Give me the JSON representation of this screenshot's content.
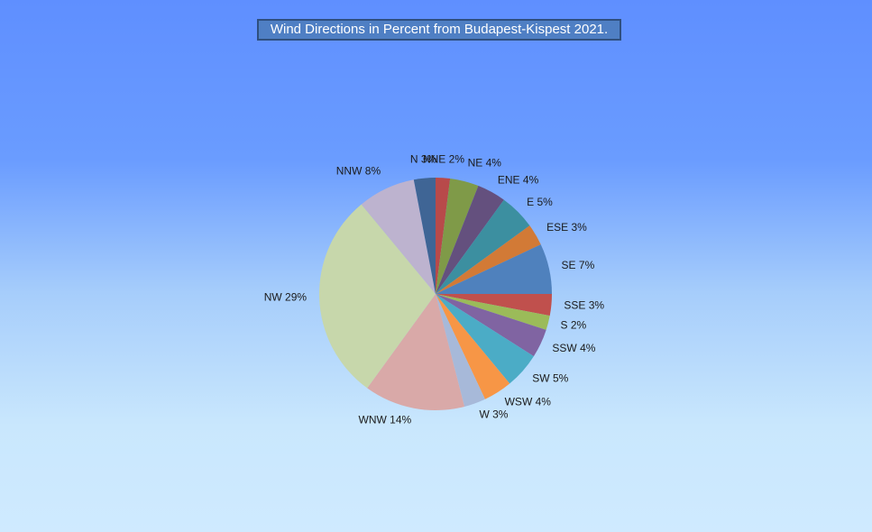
{
  "chart_data": {
    "type": "pie",
    "title": "Wind Directions in Percent from Budapest-Kispest 2021.",
    "categories": [
      "NNE",
      "NE",
      "ENE",
      "E",
      "ESE",
      "SE",
      "SSE",
      "S",
      "SSW",
      "SW",
      "WSW",
      "W",
      "WNW",
      "NW",
      "NNW",
      "N"
    ],
    "values": [
      2,
      4,
      4,
      5,
      3,
      7,
      3,
      2,
      4,
      5,
      4,
      3,
      14,
      29,
      8,
      3
    ],
    "value_labels": [
      "2%",
      "4%",
      "4%",
      "5%",
      "3%",
      "7%",
      "3%",
      "2%",
      "4%",
      "5%",
      "4%",
      "3%",
      "14%",
      "29%",
      "8%",
      "3%"
    ],
    "colors": [
      "#b84a4a",
      "#7f9a48",
      "#64507e",
      "#3c8fa0",
      "#d27a36",
      "#4f81bd",
      "#c0504d",
      "#9bbb59",
      "#8064a2",
      "#4bacc6",
      "#f79646",
      "#a7b9d9",
      "#d9a9a8",
      "#c7d7ab",
      "#bdb3cf",
      "#3f6595"
    ]
  }
}
